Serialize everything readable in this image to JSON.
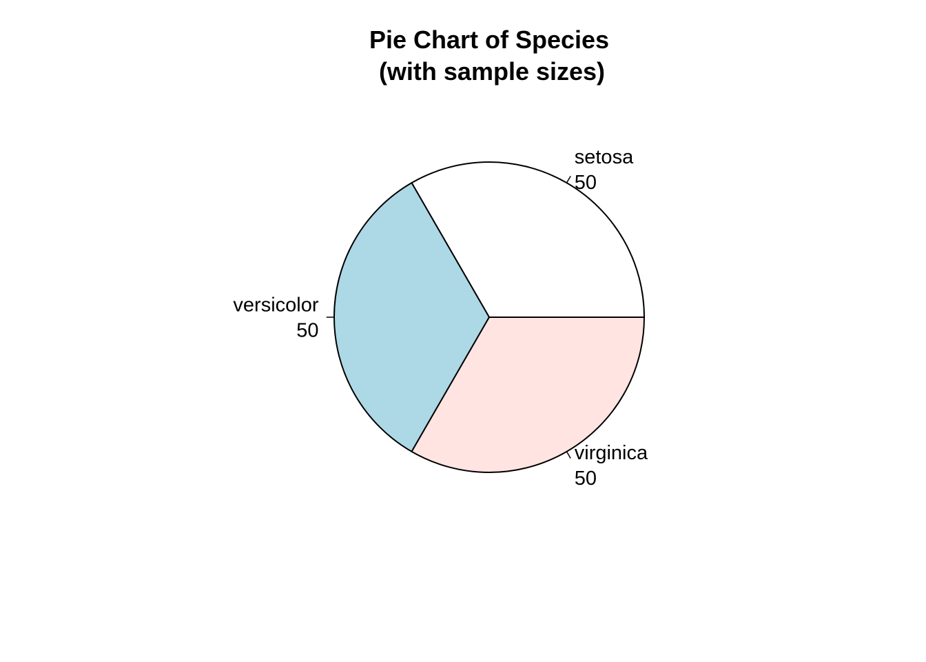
{
  "chart_data": {
    "type": "pie",
    "title": "Pie Chart of Species",
    "subtitle": "(with sample sizes)",
    "categories": [
      "setosa",
      "versicolor",
      "virginica"
    ],
    "values": [
      50,
      50,
      50
    ],
    "labels": [
      {
        "name": "setosa",
        "count": "50"
      },
      {
        "name": "versicolor",
        "count": "50"
      },
      {
        "name": "virginica",
        "count": "50"
      }
    ],
    "colors": [
      "#FFFFFF",
      "#ADD8E6",
      "#FFE4E1"
    ],
    "border_color": "#000000",
    "start_angle_deg": 0,
    "direction": "counterclockwise"
  }
}
